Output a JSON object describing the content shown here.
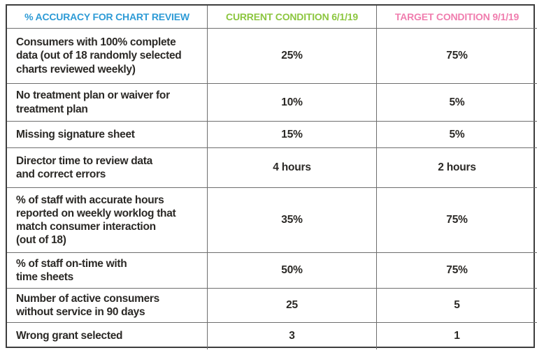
{
  "chart_data": {
    "type": "table",
    "title": "% Accuracy for Chart Review — current vs target conditions",
    "columns": [
      {
        "label": "% ACCURACY FOR CHART REVIEW",
        "color": "#2e9bd6"
      },
      {
        "label": "CURRENT CONDITION 6/1/19",
        "color": "#8cc63f"
      },
      {
        "label": "TARGET CONDITION 9/1/19",
        "color": "#f07dae"
      }
    ],
    "rows": [
      {
        "metric": "Consumers with 100% complete\ndata (out of 18 randomly selected\ncharts reviewed weekly)",
        "current": "25%",
        "target": "75%"
      },
      {
        "metric": "No treatment plan or waiver for\ntreatment plan",
        "current": "10%",
        "target": "5%"
      },
      {
        "metric": "Missing signature sheet",
        "current": "15%",
        "target": "5%"
      },
      {
        "metric": "Director time to review data\nand correct errors",
        "current": "4 hours",
        "target": "2 hours"
      },
      {
        "metric": "% of staff with accurate hours\nreported on weekly worklog that\nmatch consumer interaction\n(out of 18)",
        "current": "35%",
        "target": "75%"
      },
      {
        "metric": "% of staff on-time with\ntime sheets",
        "current": "50%",
        "target": "75%"
      },
      {
        "metric": "Number of active consumers\nwithout service in 90 days",
        "current": "25",
        "target": "5"
      },
      {
        "metric": "Wrong grant selected",
        "current": "3",
        "target": "1"
      }
    ],
    "text_color": "#2b2926",
    "border_outer_color": "#3d3d3d",
    "border_inner_color": "#6e6e6e"
  }
}
